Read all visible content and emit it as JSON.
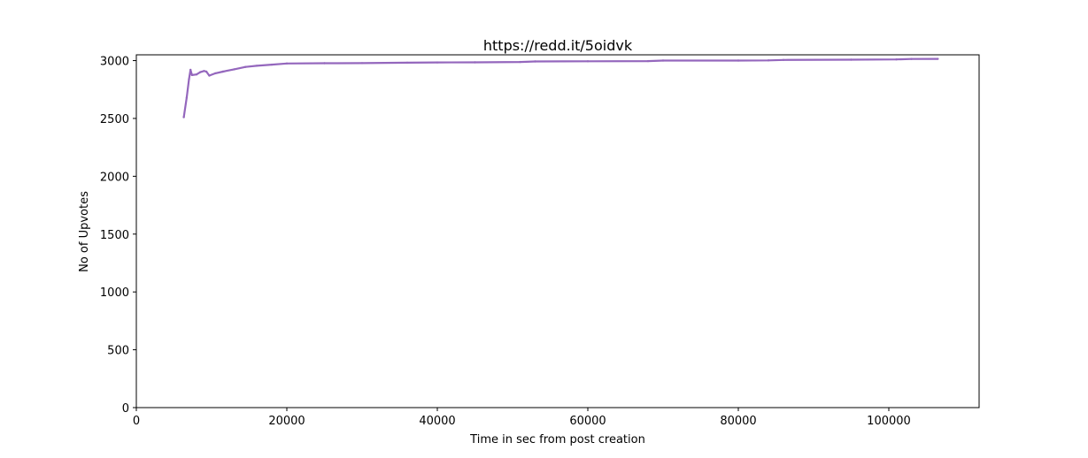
{
  "chart_data": {
    "type": "line",
    "title": "https://redd.it/5oidvk",
    "xlabel": "Time in sec from post creation",
    "ylabel": "No of Upvotes",
    "xlim": [
      0,
      112000
    ],
    "ylim": [
      0,
      3050
    ],
    "x_ticks": [
      0,
      20000,
      40000,
      60000,
      80000,
      100000
    ],
    "y_ticks": [
      0,
      500,
      1000,
      1500,
      2000,
      2500,
      3000
    ],
    "grid": false,
    "legend": "none",
    "series": [
      {
        "color": "#9467bd",
        "points": [
          [
            6300,
            2510
          ],
          [
            6700,
            2680
          ],
          [
            7000,
            2840
          ],
          [
            7200,
            2920
          ],
          [
            7400,
            2875
          ],
          [
            8000,
            2880
          ],
          [
            8500,
            2900
          ],
          [
            9000,
            2910
          ],
          [
            9300,
            2905
          ],
          [
            9700,
            2870
          ],
          [
            10500,
            2890
          ],
          [
            11500,
            2905
          ],
          [
            13000,
            2925
          ],
          [
            14500,
            2945
          ],
          [
            16000,
            2955
          ],
          [
            18000,
            2965
          ],
          [
            20000,
            2975
          ],
          [
            25000,
            2977
          ],
          [
            30000,
            2978
          ],
          [
            36000,
            2982
          ],
          [
            40000,
            2984
          ],
          [
            45000,
            2985
          ],
          [
            51000,
            2988
          ],
          [
            53000,
            2993
          ],
          [
            60000,
            2994
          ],
          [
            68000,
            2996
          ],
          [
            70000,
            3000
          ],
          [
            80000,
            3000
          ],
          [
            84000,
            3002
          ],
          [
            86000,
            3006
          ],
          [
            95000,
            3008
          ],
          [
            101000,
            3010
          ],
          [
            103000,
            3014
          ],
          [
            106500,
            3015
          ]
        ]
      }
    ]
  }
}
